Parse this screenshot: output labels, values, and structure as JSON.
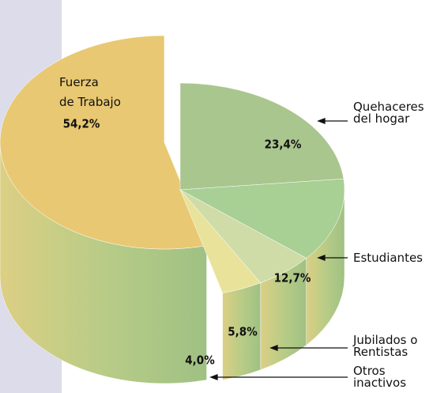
{
  "chart_data": {
    "type": "pie",
    "categories": [
      "Fuerza\nde Trabajo",
      "Quehaceres\ndel hogar",
      "Estudiantes",
      "Jubilados o\nRentistas",
      "Otros\ninactivos"
    ],
    "values": [
      54.2,
      23.4,
      12.7,
      5.8,
      4.0
    ],
    "value_labels": [
      "54,2%",
      "23,4%",
      "12,7%",
      "5,8%",
      "4,0%"
    ],
    "colors": [
      "#e8c872",
      "#a9c68e",
      "#a8cf94",
      "#cfdca8",
      "#e9e29a"
    ]
  }
}
